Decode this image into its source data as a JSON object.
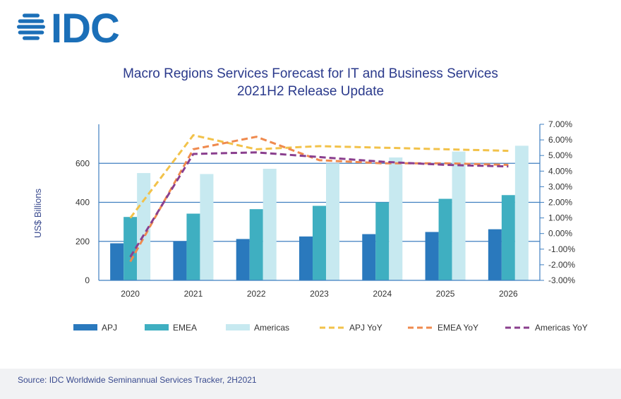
{
  "logo": {
    "text": "IDC"
  },
  "source": "Source:  IDC Worldwide Seminannual Services Tracker, 2H2021",
  "colors": {
    "apj": "#2a79bd",
    "emea": "#3fafc1",
    "americas": "#c7e9f0",
    "apj_yoy": "#f2c24a",
    "emea_yoy": "#ef8a4e",
    "americas_yoy": "#8a3f8e",
    "brand": "#1b6fb8",
    "title": "#2b3a8c",
    "axis": "#3a4b8f"
  },
  "chart_data": {
    "type": "bar",
    "title": "Macro Regions Services Forecast for IT and Business Services",
    "subtitle": "2021H2 Release Update",
    "ylabel": "US$ Billions",
    "categories": [
      "2020",
      "2021",
      "2022",
      "2023",
      "2024",
      "2025",
      "2026"
    ],
    "ylim": [
      0,
      800
    ],
    "yticks": [
      0,
      200,
      400,
      600
    ],
    "y2lim": [
      -3,
      7
    ],
    "y2ticks": [
      "-3.00%",
      "-2.00%",
      "-1.00%",
      "0.00%",
      "1.00%",
      "2.00%",
      "3.00%",
      "4.00%",
      "5.00%",
      "6.00%",
      "7.00%"
    ],
    "y2tick_values": [
      -3,
      -2,
      -1,
      0,
      1,
      2,
      3,
      4,
      5,
      6,
      7
    ],
    "gridlines": [
      0,
      200,
      400,
      600
    ],
    "legend_position": "bottom",
    "series": [
      {
        "name": "APJ",
        "kind": "bar",
        "values": [
          190,
          200,
          212,
          225,
          237,
          248,
          262
        ]
      },
      {
        "name": "EMEA",
        "kind": "bar",
        "values": [
          325,
          342,
          365,
          382,
          400,
          418,
          437
        ]
      },
      {
        "name": "Americas",
        "kind": "bar",
        "values": [
          550,
          545,
          572,
          600,
          630,
          660,
          690
        ]
      },
      {
        "name": "APJ YoY",
        "kind": "line",
        "axis": "right",
        "dashed": true,
        "values": [
          1.0,
          6.3,
          5.4,
          5.6,
          5.5,
          5.4,
          5.3
        ]
      },
      {
        "name": "EMEA YoY",
        "kind": "line",
        "axis": "right",
        "dashed": true,
        "values": [
          -1.8,
          5.4,
          6.2,
          4.7,
          4.5,
          4.5,
          4.4
        ]
      },
      {
        "name": "Americas YoY",
        "kind": "line",
        "axis": "right",
        "dashed": true,
        "values": [
          -1.5,
          5.1,
          5.2,
          4.9,
          4.6,
          4.4,
          4.3
        ]
      }
    ]
  }
}
